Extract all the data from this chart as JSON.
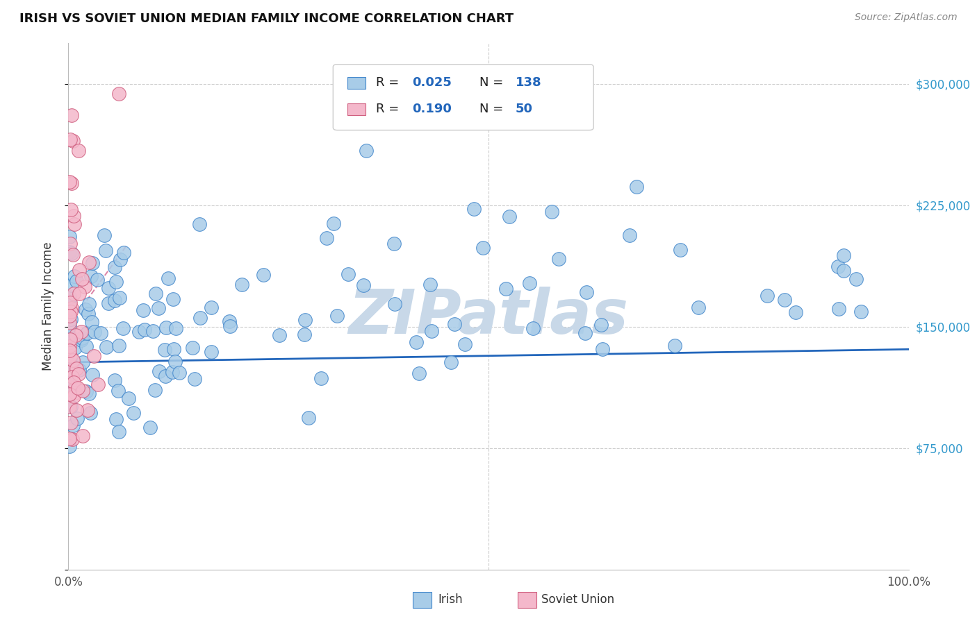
{
  "title": "IRISH VS SOVIET UNION MEDIAN FAMILY INCOME CORRELATION CHART",
  "source_text": "Source: ZipAtlas.com",
  "ylabel": "Median Family Income",
  "xlim": [
    0,
    1
  ],
  "ylim": [
    0,
    325000
  ],
  "yticks": [
    0,
    75000,
    150000,
    225000,
    300000
  ],
  "irish_color": "#a8cce8",
  "irish_edge_color": "#4488cc",
  "soviet_color": "#f4b8cb",
  "soviet_edge_color": "#d06080",
  "irish_line_color": "#2266bb",
  "soviet_line_color": "#dd88aa",
  "background_color": "#ffffff",
  "grid_color": "#cccccc",
  "watermark_color": "#c8d8e8",
  "legend_blue": "#2266bb",
  "title_fontsize": 13,
  "right_tick_color": "#3399cc"
}
